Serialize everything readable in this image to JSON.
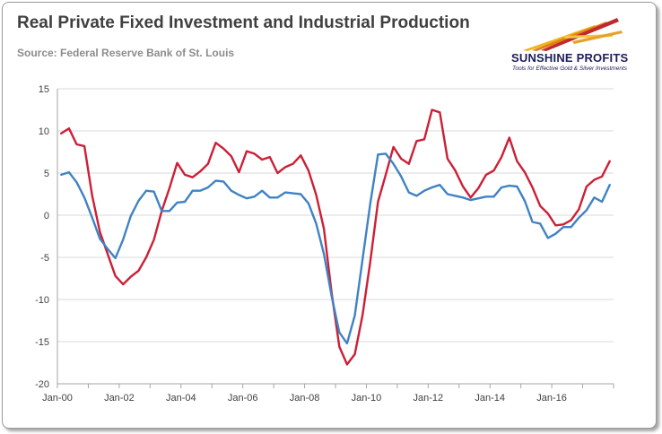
{
  "header": {
    "title": "Real Private Fixed Investment and Industrial Production",
    "source": "Source: Federal Reserve Bank of St. Louis"
  },
  "logo": {
    "name": "SUNSHINE PROFITS",
    "tagline": "Tools for Effective Gold & Silver Investments"
  },
  "colors": {
    "red_series": "#cc1f36",
    "blue_series": "#3f83c4",
    "grid": "#d9d9d9",
    "axis": "#a6a6a6"
  },
  "chart_data": {
    "type": "line",
    "title": "Real Private Fixed Investment and Industrial Production",
    "xlabel": "",
    "ylabel": "",
    "ylim": [
      -20,
      15
    ],
    "yticks": [
      15,
      10,
      5,
      0,
      -5,
      -10,
      -15,
      -20
    ],
    "grid": "horizontal",
    "legend": "none",
    "x_tick_labels": [
      "Jan-00",
      "Jan-02",
      "Jan-04",
      "Jan-06",
      "Jan-08",
      "Jan-10",
      "Jan-12",
      "Jan-14",
      "Jan-16"
    ],
    "x": [
      "2000Q1",
      "2000Q2",
      "2000Q3",
      "2000Q4",
      "2001Q1",
      "2001Q2",
      "2001Q3",
      "2001Q4",
      "2002Q1",
      "2002Q2",
      "2002Q3",
      "2002Q4",
      "2003Q1",
      "2003Q2",
      "2003Q3",
      "2003Q4",
      "2004Q1",
      "2004Q2",
      "2004Q3",
      "2004Q4",
      "2005Q1",
      "2005Q2",
      "2005Q3",
      "2005Q4",
      "2006Q1",
      "2006Q2",
      "2006Q3",
      "2006Q4",
      "2007Q1",
      "2007Q2",
      "2007Q3",
      "2007Q4",
      "2008Q1",
      "2008Q2",
      "2008Q3",
      "2008Q4",
      "2009Q1",
      "2009Q2",
      "2009Q3",
      "2009Q4",
      "2010Q1",
      "2010Q2",
      "2010Q3",
      "2010Q4",
      "2011Q1",
      "2011Q2",
      "2011Q3",
      "2011Q4",
      "2012Q1",
      "2012Q2",
      "2012Q3",
      "2012Q4",
      "2013Q1",
      "2013Q2",
      "2013Q3",
      "2013Q4",
      "2014Q1",
      "2014Q2",
      "2014Q3",
      "2014Q4",
      "2015Q1",
      "2015Q2",
      "2015Q3",
      "2015Q4",
      "2016Q1",
      "2016Q2",
      "2016Q3",
      "2016Q4",
      "2017Q1",
      "2017Q2",
      "2017Q3",
      "2017Q4"
    ],
    "series": [
      {
        "color": "#cc1f36",
        "values": [
          9.7,
          10.3,
          8.4,
          8.2,
          2.3,
          -2.0,
          -4.6,
          -7.2,
          -8.2,
          -7.3,
          -6.6,
          -5.0,
          -2.9,
          0.5,
          3.2,
          6.2,
          4.8,
          4.5,
          5.2,
          6.1,
          8.6,
          7.9,
          7.0,
          5.1,
          7.6,
          7.3,
          6.6,
          6.9,
          5.0,
          5.7,
          6.1,
          7.1,
          5.3,
          2.4,
          -1.6,
          -9.2,
          -15.6,
          -17.7,
          -16.5,
          -11.9,
          -5.5,
          1.6,
          4.8,
          8.1,
          6.7,
          6.1,
          8.8,
          9.0,
          12.5,
          12.2,
          6.7,
          5.3,
          3.4,
          2.1,
          3.2,
          4.8,
          5.3,
          6.9,
          9.2,
          6.4,
          5.1,
          3.3,
          1.1,
          0.2,
          -1.2,
          -1.1,
          -0.6,
          0.7,
          3.4,
          4.2,
          4.6,
          6.4
        ]
      },
      {
        "color": "#3f83c4",
        "values": [
          4.8,
          5.1,
          3.9,
          2.1,
          -0.3,
          -2.8,
          -4.0,
          -5.1,
          -2.9,
          -0.1,
          1.7,
          2.9,
          2.8,
          0.5,
          0.5,
          1.5,
          1.6,
          2.9,
          2.9,
          3.3,
          4.1,
          4.0,
          2.9,
          2.4,
          2.0,
          2.2,
          2.9,
          2.1,
          2.1,
          2.7,
          2.6,
          2.5,
          1.4,
          -1.0,
          -4.6,
          -9.6,
          -13.9,
          -15.2,
          -11.9,
          -5.3,
          1.4,
          7.2,
          7.3,
          6.1,
          4.6,
          2.7,
          2.3,
          2.9,
          3.3,
          3.6,
          2.5,
          2.3,
          2.1,
          1.8,
          2.0,
          2.2,
          2.2,
          3.3,
          3.5,
          3.4,
          1.7,
          -0.8,
          -1.0,
          -2.7,
          -2.2,
          -1.4,
          -1.4,
          -0.3,
          0.6,
          2.1,
          1.6,
          3.6
        ]
      }
    ]
  }
}
